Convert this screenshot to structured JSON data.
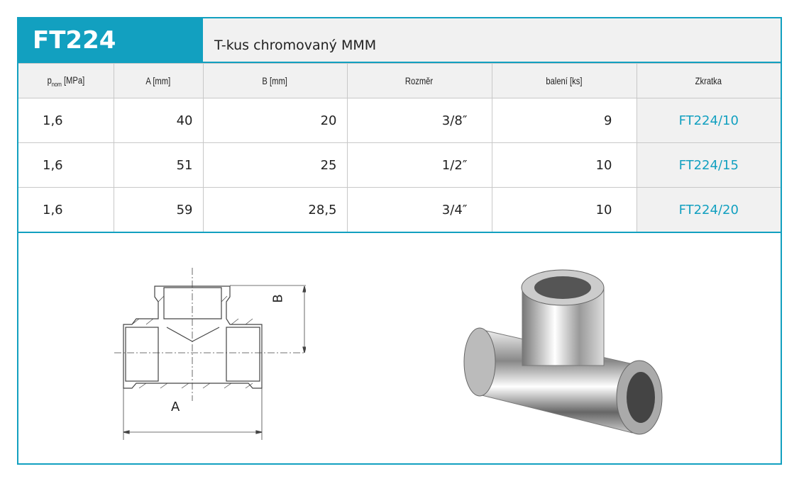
{
  "header": {
    "code": "FT224",
    "title": "T-kus chromovaný MMM"
  },
  "columns": {
    "p": "p",
    "p_sub": "nom",
    "p_unit": "[MPa]",
    "a": "A [mm]",
    "b": "B [mm]",
    "size": "Rozměr",
    "pack": "balení [ks]",
    "abbr": "Zkratka"
  },
  "rows": [
    {
      "p": "1,6",
      "a": "40",
      "b": "20",
      "size": "3/8″",
      "pack": "9",
      "abbr": "FT224/10"
    },
    {
      "p": "1,6",
      "a": "51",
      "b": "25",
      "size": "1/2″",
      "pack": "10",
      "abbr": "FT224/15"
    },
    {
      "p": "1,6",
      "a": "59",
      "b": "28,5",
      "size": "3/4″",
      "pack": "10",
      "abbr": "FT224/20"
    }
  ],
  "drawing": {
    "label_a": "A",
    "label_b": "B"
  },
  "colors": {
    "accent": "#12a0c0"
  }
}
